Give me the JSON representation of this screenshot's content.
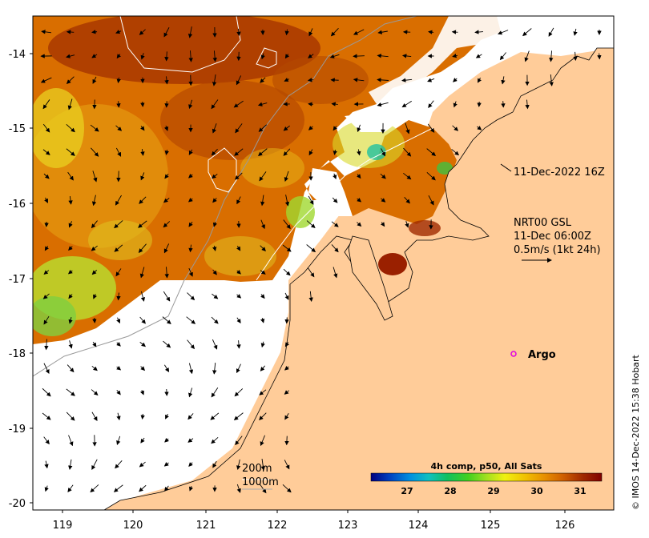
{
  "map": {
    "x_ticks": [
      "119",
      "120",
      "121",
      "122",
      "123",
      "124",
      "125",
      "126"
    ],
    "y_ticks": [
      "-14",
      "-15",
      "-16",
      "-17",
      "-18",
      "-19",
      "-20"
    ],
    "colors": {
      "land": "#ffcc99",
      "frame": "#000000",
      "sst_dark": "#9a2a00",
      "sst_mid": "#d46a00",
      "sst_orange": "#e69a10",
      "sst_yellow": "#e8e020",
      "sst_green": "#9ae040"
    }
  },
  "annotations": {
    "timestamp": "11-Dec-2022 16Z",
    "current_source": "NRT00 GSL",
    "current_time": "11-Dec 06:00Z",
    "current_scale": "0.5m/s (1kt 24h)",
    "argo_label": "Argo",
    "depth_200": "200m",
    "depth_1000": "1000m"
  },
  "colorbar": {
    "title": "4h comp, p50, All Sats",
    "ticks": [
      "27",
      "28",
      "29",
      "30",
      "31"
    ],
    "colors": [
      "#000080",
      "#0040c0",
      "#0090e0",
      "#10c0c0",
      "#10c060",
      "#40d020",
      "#a0e020",
      "#f0f010",
      "#f0c000",
      "#e89000",
      "#d06000",
      "#a02800",
      "#800000"
    ]
  },
  "copyright": "© IMOS 14-Dec-2022 15:38 Hobart"
}
